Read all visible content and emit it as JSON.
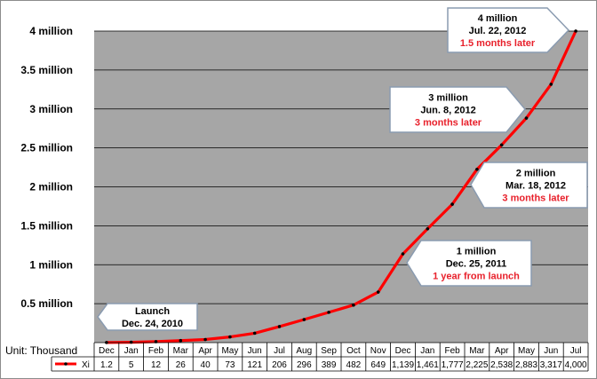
{
  "chart_data": {
    "type": "line",
    "unit_label": "Unit: Thousand",
    "categories": [
      "Dec",
      "Jan",
      "Feb",
      "Mar",
      "Apr",
      "May",
      "Jun",
      "Jul",
      "Aug",
      "Sep",
      "Oct",
      "Nov",
      "Dec",
      "Jan",
      "Feb",
      "Mar",
      "Apr",
      "May",
      "Jun",
      "Jul"
    ],
    "series": [
      {
        "name": "Xi",
        "values": [
          1.2,
          5,
          12,
          26,
          40,
          73,
          121,
          206,
          296,
          389,
          482,
          649,
          1139,
          1461,
          1777,
          2225,
          2538,
          2883,
          3317,
          4000
        ],
        "value_labels": [
          "1.2",
          "5",
          "12",
          "26",
          "40",
          "73",
          "121",
          "206",
          "296",
          "389",
          "482",
          "649",
          "1,139",
          "1,461",
          "1,777",
          "2,225",
          "2,538",
          "2,883",
          "3,317",
          "4,000"
        ],
        "color": "#ff0000"
      }
    ],
    "ylim": [
      0,
      4000
    ],
    "yticks": [
      {
        "value": 500,
        "label": "0.5 million"
      },
      {
        "value": 1000,
        "label": "1 million"
      },
      {
        "value": 1500,
        "label": "1.5 million"
      },
      {
        "value": 2000,
        "label": "2 million"
      },
      {
        "value": 2500,
        "label": "2.5 million"
      },
      {
        "value": 3000,
        "label": "3 million"
      },
      {
        "value": 3500,
        "label": "3.5 million"
      },
      {
        "value": 4000,
        "label": "4 million"
      }
    ],
    "grid": true,
    "plot_background": "#a6a6a6",
    "annotations": [
      {
        "id": "launch",
        "lines": [
          "Launch",
          "Dec. 24, 2010"
        ],
        "highlight": ""
      },
      {
        "id": "one-million",
        "lines": [
          "1 million",
          "Dec. 25, 2011"
        ],
        "highlight": "1 year from launch"
      },
      {
        "id": "two-million",
        "lines": [
          "2 million",
          "Mar. 18, 2012"
        ],
        "highlight": "3 months later"
      },
      {
        "id": "three-million",
        "lines": [
          "3 million",
          "Jun. 8, 2012"
        ],
        "highlight": "3 months later"
      },
      {
        "id": "four-million",
        "lines": [
          "4 million",
          "Jul. 22, 2012"
        ],
        "highlight": "1.5 months later"
      }
    ],
    "highlight_color": "#e8202b"
  }
}
